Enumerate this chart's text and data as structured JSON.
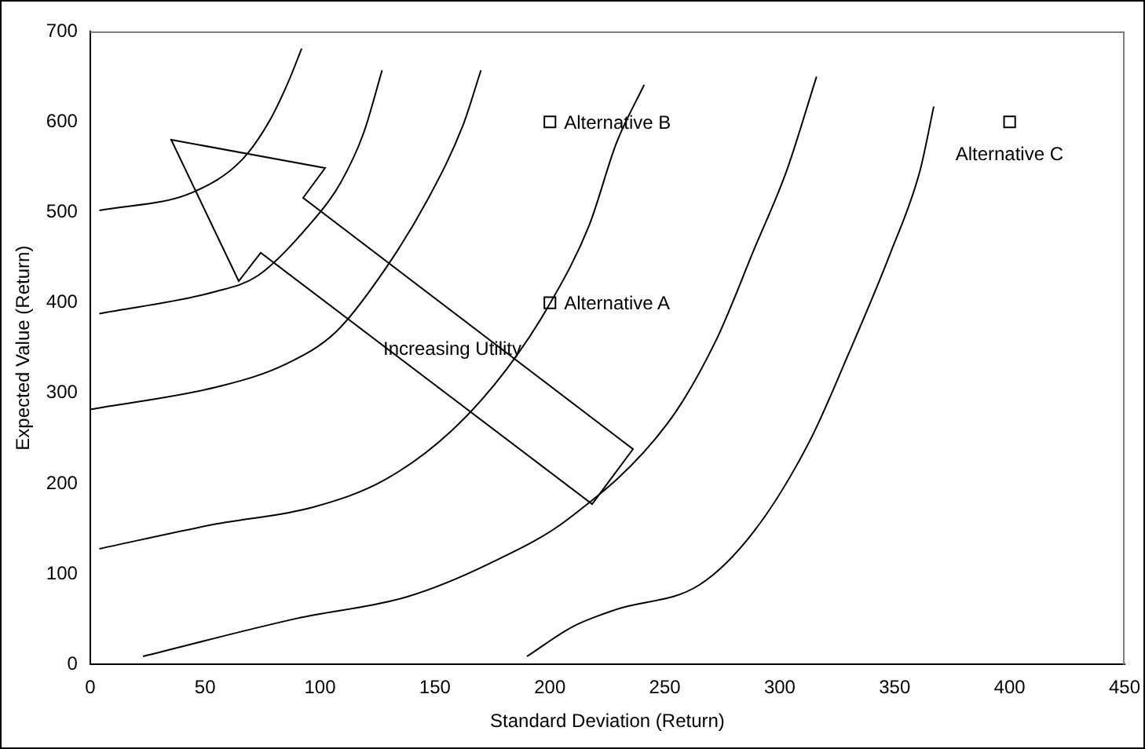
{
  "chart_data": {
    "type": "line",
    "xlabel": "Standard Deviation (Return)",
    "ylabel": "Expected Value (Return)",
    "xlim": [
      0,
      450
    ],
    "ylim": [
      0,
      700
    ],
    "xticks": [
      0,
      50,
      100,
      150,
      200,
      250,
      300,
      350,
      400,
      450
    ],
    "yticks": [
      0,
      100,
      200,
      300,
      400,
      500,
      600,
      700
    ],
    "grid": false,
    "legend": false,
    "line_style": "solid",
    "series": [
      {
        "color": "#000000",
        "x": [
          4,
          44.5,
          66,
          78,
          86,
          92
        ],
        "values": [
          502,
          522,
          558,
          601,
          643,
          681
        ]
      },
      {
        "color": "#000000",
        "x": [
          4,
          54,
          73,
          95,
          109,
          119,
          127
        ],
        "values": [
          388,
          412,
          430,
          485,
          533,
          588,
          657
        ]
      },
      {
        "color": "#000000",
        "x": [
          0,
          57,
          85,
          107,
          128,
          147,
          162,
          170
        ],
        "values": [
          282,
          308,
          332,
          368,
          436,
          515,
          595,
          657
        ]
      },
      {
        "color": "#000000",
        "x": [
          4,
          54,
          97,
          128,
          157,
          181,
          200,
          217,
          229,
          241
        ],
        "values": [
          128,
          155,
          174,
          204,
          258,
          326,
          399,
          485,
          577,
          641
        ]
      },
      {
        "color": "#000000",
        "x": [
          23,
          90,
          138,
          174,
          208,
          251,
          272,
          289,
          303,
          316
        ],
        "values": [
          9,
          51,
          75,
          112,
          161,
          266,
          357,
          460,
          546,
          650
        ]
      },
      {
        "color": "#000000",
        "x": [
          190,
          210,
          229,
          265,
          289,
          313,
          330,
          348,
          361,
          367
        ],
        "values": [
          9,
          42,
          61,
          88,
          148,
          247,
          344,
          454,
          546,
          617
        ]
      },
      {
        "type": "scatter",
        "color": "#000000",
        "marker": "square",
        "x": [
          200,
          200,
          400
        ],
        "values": [
          400,
          600,
          600
        ],
        "value_labels": [
          "Alternative A",
          "Alternative B",
          "Alternative C"
        ]
      }
    ],
    "annotations": [
      "Increasing Utility"
    ]
  }
}
